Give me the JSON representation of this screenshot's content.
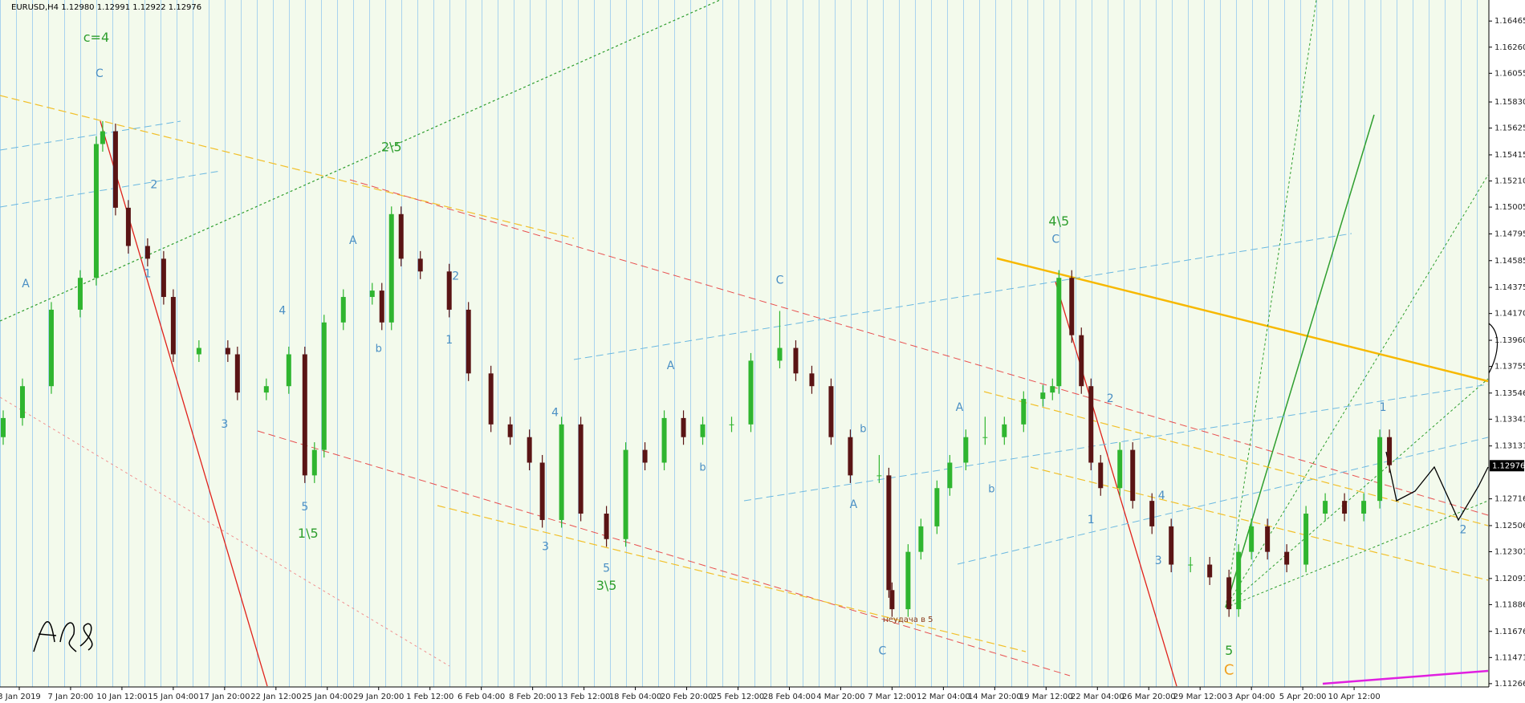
{
  "chart_data": {
    "type": "candlestick",
    "title": "EURUSD,H4  1.12980 1.12991 1.12922 1.12976",
    "xlim": [
      -1,
      463
    ],
    "ylim": [
      1.1124,
      1.1663
    ],
    "bull_color": "#2fb52f",
    "bear_color": "#5a1414",
    "xticks": [
      {
        "value": 5,
        "label": "3 Jan 2019"
      },
      {
        "value": 21,
        "label": "7 Jan 20:00"
      },
      {
        "value": 37,
        "label": "10 Jan 12:00"
      },
      {
        "value": 53,
        "label": "15 Jan 04:00"
      },
      {
        "value": 69,
        "label": "17 Jan 20:00"
      },
      {
        "value": 85,
        "label": "22 Jan 12:00"
      },
      {
        "value": 101,
        "label": "25 Jan 04:00"
      },
      {
        "value": 117,
        "label": "29 Jan 20:00"
      },
      {
        "value": 133,
        "label": "1 Feb 12:00"
      },
      {
        "value": 149,
        "label": "6 Feb 04:00"
      },
      {
        "value": 165,
        "label": "8 Feb 20:00"
      },
      {
        "value": 181,
        "label": "13 Feb 12:00"
      },
      {
        "value": 197,
        "label": "18 Feb 04:00"
      },
      {
        "value": 213,
        "label": "20 Feb 20:00"
      },
      {
        "value": 229,
        "label": "25 Feb 12:00"
      },
      {
        "value": 245,
        "label": "28 Feb 04:00"
      },
      {
        "value": 261,
        "label": "4 Mar 20:00"
      },
      {
        "value": 277,
        "label": "7 Mar 12:00"
      },
      {
        "value": 293,
        "label": "12 Mar 04:00"
      },
      {
        "value": 309,
        "label": "14 Mar 20:00"
      },
      {
        "value": 325,
        "label": "19 Mar 12:00"
      },
      {
        "value": 341,
        "label": "22 Mar 04:00"
      },
      {
        "value": 357,
        "label": "26 Mar 20:00"
      },
      {
        "value": 373,
        "label": "29 Mar 12:00"
      },
      {
        "value": 389,
        "label": "3 Apr 04:00"
      },
      {
        "value": 405,
        "label": "5 Apr 20:00"
      },
      {
        "value": 421,
        "label": "10 Apr 12:00"
      }
    ],
    "yticks": [
      1.16465,
      {
        "value": 1.1626,
        "label": "1.16260"
      },
      1.16055,
      {
        "value": 1.1583,
        "label": "1.15830"
      },
      1.15625,
      1.15415,
      {
        "value": 1.1521,
        "label": "1.15210"
      },
      1.15005,
      1.14795,
      1.14585,
      1.14375,
      {
        "value": 1.1417,
        "label": "1.14170"
      },
      {
        "value": 1.1396,
        "label": "1.13960"
      },
      1.13755,
      1.13546,
      1.13341,
      1.13131,
      1.12716,
      1.12506,
      1.12301,
      1.12091,
      1.11886,
      1.11676,
      1.11471,
      1.11266
    ],
    "price_label": 1.12976,
    "candles": [
      [
        0,
        1.132,
        1.1341,
        1.1314,
        1.1335
      ],
      [
        6,
        1.1335,
        1.1366,
        1.1329,
        1.136
      ],
      [
        15,
        1.136,
        1.1426,
        1.1354,
        1.142
      ],
      [
        24,
        1.142,
        1.1451,
        1.1414,
        1.1445
      ],
      [
        29,
        1.1445,
        1.1556,
        1.1439,
        1.155
      ],
      [
        31,
        1.155,
        1.1568,
        1.1544,
        1.156
      ],
      [
        35,
        1.156,
        1.1566,
        1.1494,
        1.15
      ],
      [
        39,
        1.15,
        1.1506,
        1.1464,
        1.147
      ],
      [
        45,
        1.147,
        1.1476,
        1.1454,
        1.146
      ],
      [
        50,
        1.146,
        1.1466,
        1.1424,
        1.143
      ],
      [
        53,
        1.143,
        1.1436,
        1.1379,
        1.1385
      ],
      [
        61,
        1.1385,
        1.1396,
        1.1379,
        1.139
      ],
      [
        70,
        1.139,
        1.1396,
        1.1379,
        1.1385
      ],
      [
        73,
        1.1385,
        1.1391,
        1.1349,
        1.1355
      ],
      [
        82,
        1.1355,
        1.1366,
        1.1349,
        1.136
      ],
      [
        89,
        1.136,
        1.1391,
        1.1354,
        1.1385
      ],
      [
        94,
        1.1385,
        1.1391,
        1.1284,
        1.129
      ],
      [
        97,
        1.129,
        1.1316,
        1.1284,
        1.131
      ],
      [
        100,
        1.131,
        1.1416,
        1.1304,
        1.141
      ],
      [
        106,
        1.141,
        1.1436,
        1.1404,
        1.143
      ],
      [
        115,
        1.143,
        1.1441,
        1.1424,
        1.1435
      ],
      [
        118,
        1.1435,
        1.1441,
        1.1404,
        1.141
      ],
      [
        121,
        1.141,
        1.1501,
        1.1404,
        1.1495
      ],
      [
        124,
        1.1495,
        1.1501,
        1.1454,
        1.146
      ],
      [
        130,
        1.146,
        1.1466,
        1.1444,
        1.145
      ],
      [
        139,
        1.145,
        1.1456,
        1.1414,
        1.142
      ],
      [
        145,
        1.142,
        1.1426,
        1.1364,
        1.137
      ],
      [
        152,
        1.137,
        1.1376,
        1.1324,
        1.133
      ],
      [
        158,
        1.133,
        1.1336,
        1.1314,
        1.132
      ],
      [
        164,
        1.132,
        1.1326,
        1.1294,
        1.13
      ],
      [
        168,
        1.13,
        1.1306,
        1.1249,
        1.1255
      ],
      [
        174,
        1.1255,
        1.1336,
        1.1249,
        1.133
      ],
      [
        180,
        1.133,
        1.1336,
        1.1254,
        1.126
      ],
      [
        188,
        1.126,
        1.1266,
        1.1234,
        1.124
      ],
      [
        194,
        1.124,
        1.1316,
        1.1234,
        1.131
      ],
      [
        200,
        1.131,
        1.1316,
        1.1294,
        1.13
      ],
      [
        206,
        1.13,
        1.1341,
        1.1294,
        1.1335
      ],
      [
        212,
        1.1335,
        1.1341,
        1.1314,
        1.132
      ],
      [
        218,
        1.132,
        1.1336,
        1.1314,
        1.133
      ],
      [
        227,
        1.133,
        1.1336,
        1.1324,
        1.133
      ],
      [
        233,
        1.133,
        1.1386,
        1.1324,
        1.138
      ],
      [
        242,
        1.138,
        1.1419,
        1.1374,
        1.139
      ],
      [
        247,
        1.139,
        1.1396,
        1.1364,
        1.137
      ],
      [
        252,
        1.137,
        1.1376,
        1.1354,
        1.136
      ],
      [
        258,
        1.136,
        1.1366,
        1.1314,
        1.132
      ],
      [
        264,
        1.132,
        1.1326,
        1.1284,
        1.129
      ],
      [
        273,
        1.129,
        1.1306,
        1.1284,
        1.129
      ],
      [
        276,
        1.129,
        1.1296,
        1.1194,
        1.12
      ],
      [
        277,
        1.12,
        1.1206,
        1.1179,
        1.1185
      ],
      [
        282,
        1.1185,
        1.1236,
        1.1179,
        1.123
      ],
      [
        286,
        1.123,
        1.1256,
        1.1224,
        1.125
      ],
      [
        291,
        1.125,
        1.1286,
        1.1244,
        1.128
      ],
      [
        295,
        1.128,
        1.1306,
        1.1274,
        1.13
      ],
      [
        300,
        1.13,
        1.1326,
        1.1294,
        1.132
      ],
      [
        306,
        1.132,
        1.1336,
        1.1314,
        1.132
      ],
      [
        312,
        1.132,
        1.1336,
        1.1314,
        1.133
      ],
      [
        318,
        1.133,
        1.1356,
        1.1324,
        1.135
      ],
      [
        324,
        1.135,
        1.1361,
        1.1344,
        1.1355
      ],
      [
        327,
        1.1355,
        1.1366,
        1.1349,
        1.136
      ],
      [
        329,
        1.136,
        1.1451,
        1.1354,
        1.1445
      ],
      [
        333,
        1.1445,
        1.1451,
        1.1394,
        1.14
      ],
      [
        336,
        1.14,
        1.1406,
        1.1354,
        1.136
      ],
      [
        339,
        1.136,
        1.1366,
        1.1294,
        1.13
      ],
      [
        342,
        1.13,
        1.1306,
        1.1274,
        1.128
      ],
      [
        348,
        1.128,
        1.1316,
        1.1274,
        1.131
      ],
      [
        352,
        1.131,
        1.1316,
        1.1264,
        1.127
      ],
      [
        358,
        1.127,
        1.1276,
        1.1244,
        1.125
      ],
      [
        364,
        1.125,
        1.1256,
        1.1214,
        1.122
      ],
      [
        370,
        1.122,
        1.1226,
        1.1214,
        1.122
      ],
      [
        376,
        1.122,
        1.1226,
        1.1204,
        1.121
      ],
      [
        382,
        1.121,
        1.1216,
        1.1179,
        1.1185
      ],
      [
        385,
        1.1185,
        1.1236,
        1.1179,
        1.123
      ],
      [
        389,
        1.123,
        1.1256,
        1.1224,
        1.125
      ],
      [
        394,
        1.125,
        1.1256,
        1.1224,
        1.123
      ],
      [
        400,
        1.123,
        1.1236,
        1.1214,
        1.122
      ],
      [
        406,
        1.122,
        1.1266,
        1.1214,
        1.126
      ],
      [
        412,
        1.126,
        1.1276,
        1.1254,
        1.127
      ],
      [
        418,
        1.127,
        1.1276,
        1.1254,
        1.126
      ],
      [
        424,
        1.126,
        1.1276,
        1.1254,
        1.127
      ],
      [
        429,
        1.127,
        1.1326,
        1.1264,
        1.132
      ],
      [
        432,
        1.132,
        1.1326,
        1.1292,
        1.1298
      ]
    ],
    "annotations": [
      {
        "text": "c=4",
        "x": 29,
        "y": 1.1633,
        "color": "#2e9e2e",
        "size": 16
      },
      {
        "text": "C",
        "x": 30,
        "y": 1.1605,
        "color": "#4a8fc4",
        "size": 14
      },
      {
        "text": "2\\5",
        "x": 121,
        "y": 1.1547,
        "color": "#2e9e2e",
        "size": 16
      },
      {
        "text": "4\\5",
        "x": 329,
        "y": 1.1489,
        "color": "#2e9e2e",
        "size": 16
      },
      {
        "text": "C",
        "x": 328,
        "y": 1.1475,
        "color": "#4a8fc4",
        "size": 14
      },
      {
        "text": "C",
        "x": 242,
        "y": 1.1443,
        "color": "#4a8fc4",
        "size": 14
      },
      {
        "text": "1\\5",
        "x": 95,
        "y": 1.1244,
        "color": "#2e9e2e",
        "size": 16
      },
      {
        "text": "3\\5",
        "x": 188,
        "y": 1.1203,
        "color": "#2e9e2e",
        "size": 16
      },
      {
        "text": "5",
        "x": 382,
        "y": 1.1152,
        "color": "#2e9e2e",
        "size": 16
      },
      {
        "text": "C",
        "x": 382,
        "y": 1.1137,
        "color": "#f0a020",
        "size": 18
      },
      {
        "text": "C",
        "x": 274,
        "y": 1.1152,
        "color": "#4a8fc4",
        "size": 14
      },
      {
        "text": "A",
        "x": 265,
        "y": 1.1267,
        "color": "#4a8fc4",
        "size": 14
      },
      {
        "text": "A",
        "x": 208,
        "y": 1.1376,
        "color": "#4a8fc4",
        "size": 14
      },
      {
        "text": "A",
        "x": 298,
        "y": 1.1343,
        "color": "#4a8fc4",
        "size": 14
      },
      {
        "text": "A",
        "x": 109,
        "y": 1.1474,
        "color": "#4a8fc4",
        "size": 14
      },
      {
        "text": "A",
        "x": 7,
        "y": 1.144,
        "color": "#4a8fc4",
        "size": 14
      },
      {
        "text": "2",
        "x": 47,
        "y": 1.1518,
        "color": "#4a8fc4",
        "size": 14
      },
      {
        "text": "1",
        "x": 45,
        "y": 1.1448,
        "color": "#4a8fc4",
        "size": 14
      },
      {
        "text": "3",
        "x": 69,
        "y": 1.133,
        "color": "#4a8fc4",
        "size": 14
      },
      {
        "text": "4",
        "x": 87,
        "y": 1.1419,
        "color": "#4a8fc4",
        "size": 14
      },
      {
        "text": "5",
        "x": 94,
        "y": 1.1265,
        "color": "#4a8fc4",
        "size": 14
      },
      {
        "text": "2",
        "x": 141,
        "y": 1.1446,
        "color": "#4a8fc4",
        "size": 14
      },
      {
        "text": "1",
        "x": 139,
        "y": 1.1396,
        "color": "#4a8fc4",
        "size": 14
      },
      {
        "text": "4",
        "x": 172,
        "y": 1.1339,
        "color": "#4a8fc4",
        "size": 14
      },
      {
        "text": "3",
        "x": 169,
        "y": 1.1234,
        "color": "#4a8fc4",
        "size": 14
      },
      {
        "text": "5",
        "x": 188,
        "y": 1.1217,
        "color": "#4a8fc4",
        "size": 14
      },
      {
        "text": "2",
        "x": 345,
        "y": 1.135,
        "color": "#4a8fc4",
        "size": 14
      },
      {
        "text": "1",
        "x": 339,
        "y": 1.1255,
        "color": "#4a8fc4",
        "size": 14
      },
      {
        "text": "3",
        "x": 360,
        "y": 1.1223,
        "color": "#4a8fc4",
        "size": 14
      },
      {
        "text": "4",
        "x": 361,
        "y": 1.1274,
        "color": "#4a8fc4",
        "size": 14
      },
      {
        "text": "1",
        "x": 430,
        "y": 1.1343,
        "color": "#4a8fc4",
        "size": 14
      },
      {
        "text": "2",
        "x": 455,
        "y": 1.1247,
        "color": "#4a8fc4",
        "size": 14
      },
      {
        "text": "b",
        "x": 268,
        "y": 1.1326,
        "color": "#4a8fc4",
        "size": 13
      },
      {
        "text": "b",
        "x": 308,
        "y": 1.1279,
        "color": "#4a8fc4",
        "size": 13
      },
      {
        "text": "b",
        "x": 117,
        "y": 1.1389,
        "color": "#4a8fc4",
        "size": 13
      },
      {
        "text": "b",
        "x": 218,
        "y": 1.1296,
        "color": "#4a8fc4",
        "size": 13
      },
      {
        "text": "неудача в 5",
        "x": 282,
        "y": 1.1177,
        "color": "#8b3a1a",
        "size": 10
      }
    ]
  }
}
